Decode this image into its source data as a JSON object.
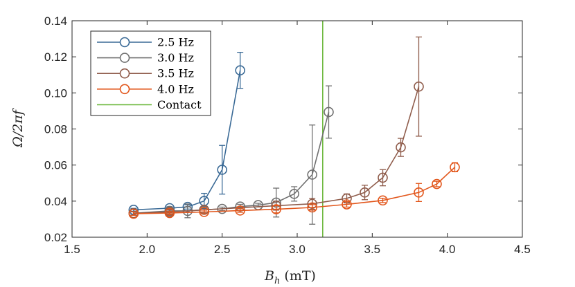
{
  "chart_data": {
    "type": "line",
    "title": "",
    "xlabel": "B_h (mT)",
    "ylabel": "Ω/2πf",
    "xlim": [
      1.5,
      4.5
    ],
    "ylim": [
      0.02,
      0.14
    ],
    "xticks": [
      "1.5",
      "2.0",
      "2.5",
      "3.0",
      "3.5",
      "4.0",
      "4.5"
    ],
    "yticks": [
      "0.02",
      "0.04",
      "0.06",
      "0.08",
      "0.10",
      "0.12",
      "0.14"
    ],
    "legend_position": "top-left",
    "series": [
      {
        "name": "2.5 Hz",
        "color": "#3a6a96",
        "x": [
          1.91,
          2.15,
          2.27,
          2.38,
          2.5,
          2.62
        ],
        "y": [
          0.0352,
          0.0361,
          0.0368,
          0.0401,
          0.0574,
          0.1125
        ],
        "err": [
          0.0008,
          0.0008,
          0.0012,
          0.0042,
          0.0135,
          0.01
        ]
      },
      {
        "name": "3.0 Hz",
        "color": "#707070",
        "x": [
          1.91,
          2.15,
          2.27,
          2.38,
          2.5,
          2.62,
          2.74,
          2.86,
          2.98,
          3.1,
          3.21
        ],
        "y": [
          0.0333,
          0.0346,
          0.0346,
          0.0352,
          0.0357,
          0.037,
          0.0378,
          0.0392,
          0.044,
          0.0547,
          0.0894
        ],
        "err": [
          0.001,
          0.0018,
          0.0038,
          0.0018,
          0.001,
          0.0012,
          0.001,
          0.008,
          0.004,
          0.0275,
          0.0145
        ]
      },
      {
        "name": "3.5 Hz",
        "color": "#8f5c4b",
        "x": [
          1.91,
          2.15,
          2.38,
          2.86,
          3.1,
          3.33,
          3.45,
          3.57,
          3.69,
          3.81
        ],
        "y": [
          0.0333,
          0.034,
          0.0352,
          0.0375,
          0.0385,
          0.0415,
          0.0448,
          0.053,
          0.0698,
          0.1035
        ],
        "err": [
          0.001,
          0.0012,
          0.0012,
          0.0025,
          0.003,
          0.0025,
          0.004,
          0.0045,
          0.005,
          0.0275
        ]
      },
      {
        "name": "4.0 Hz",
        "color": "#e2561b",
        "x": [
          1.91,
          2.15,
          2.38,
          2.62,
          2.86,
          3.1,
          3.33,
          3.57,
          3.81,
          3.93,
          4.05
        ],
        "y": [
          0.033,
          0.0334,
          0.034,
          0.0348,
          0.0355,
          0.0365,
          0.0382,
          0.0404,
          0.0448,
          0.0495,
          0.0588
        ],
        "err": [
          0.001,
          0.001,
          0.001,
          0.001,
          0.002,
          0.0015,
          0.0015,
          0.0012,
          0.005,
          0.0015,
          0.0025
        ]
      },
      {
        "name": "Contact",
        "color": "#6cb73c",
        "type": "vline",
        "x": 3.17
      }
    ]
  }
}
